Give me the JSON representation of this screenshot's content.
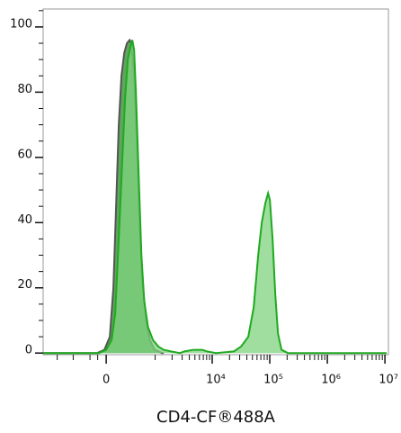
{
  "chart_data": {
    "type": "histogram-overlay",
    "x_label": "CD4-CF®488A",
    "xscale": "asinh",
    "asinh_cofactor": 288,
    "xlim": [
      -1780,
      11500000
    ],
    "xticks": [
      0,
      {
        "value": 10000,
        "label": "10⁴"
      },
      {
        "value": 100000,
        "label": "10⁵"
      },
      {
        "value": 1000000,
        "label": "10⁶"
      },
      {
        "value": 10000000,
        "label": "10⁷"
      }
    ],
    "xminorticks": [
      -1000,
      -500,
      -200,
      -100,
      1000,
      2000,
      3000,
      4000,
      5000,
      6000,
      7000,
      8000,
      9000,
      20000,
      30000,
      40000,
      50000,
      60000,
      70000,
      80000,
      90000,
      200000,
      300000,
      400000,
      500000,
      600000,
      700000,
      800000,
      900000,
      2000000,
      3000000,
      4000000,
      5000000,
      6000000,
      7000000,
      8000000,
      9000000
    ],
    "ylim": [
      -0.5,
      105.5
    ],
    "yticks": [
      0,
      20,
      40,
      60,
      80,
      100
    ],
    "yminorticks": [
      5,
      10,
      15,
      25,
      30,
      35,
      45,
      50,
      55,
      65,
      70,
      75,
      85,
      90,
      95,
      105
    ],
    "series": [
      {
        "color": "#555555",
        "fill": "#5fa65f",
        "x": [
          -1777,
          -106,
          -21,
          42,
          84,
          117,
          151,
          187,
          226,
          267,
          311,
          342,
          393,
          448,
          509,
          578,
          683,
          801,
          982,
          1325,
          1426
        ],
        "values": [
          0,
          0,
          1,
          5,
          20,
          45,
          70,
          85,
          92,
          95,
          96,
          95,
          85,
          65,
          42,
          22,
          10,
          4,
          1,
          0,
          0
        ]
      },
      {
        "color": "#1faa1f",
        "fill": "#7fd37f",
        "x": [
          -1777,
          -84,
          0,
          63,
          106,
          151,
          200,
          239,
          281,
          327,
          359,
          393,
          429,
          488,
          554,
          628,
          740,
          913,
          1141,
          1426,
          1909,
          2745,
          3283,
          4723,
          6768,
          8093,
          11578,
          23818,
          31738,
          42336,
          52560,
          62928,
          72576,
          83808,
          93456,
          100368,
          111888,
          124560,
          138816,
          160128,
          205920,
          10700000
        ],
        "values": [
          0,
          0,
          1,
          4,
          12,
          35,
          60,
          78,
          90,
          94,
          96,
          93,
          80,
          55,
          30,
          16,
          8,
          4,
          2,
          1,
          0.5,
          0,
          0.5,
          1,
          1,
          0.5,
          0,
          0.5,
          2,
          5,
          14,
          30,
          40,
          46,
          49,
          47,
          35,
          18,
          6,
          1,
          0,
          0
        ]
      }
    ]
  }
}
